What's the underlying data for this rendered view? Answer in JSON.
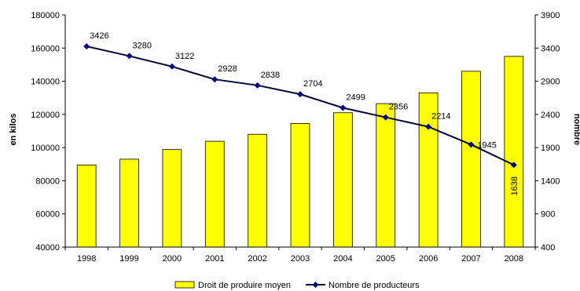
{
  "chart_data": {
    "type": "bar",
    "title": "",
    "categories": [
      "1998",
      "1999",
      "2000",
      "2001",
      "2002",
      "2003",
      "2004",
      "2005",
      "2006",
      "2007",
      "2008"
    ],
    "y_left": {
      "label": "en kilos",
      "range": [
        40000,
        180000
      ],
      "ticks": [
        "40000",
        "60000",
        "80000",
        "100000",
        "120000",
        "140000",
        "160000",
        "180000"
      ]
    },
    "y_right": {
      "label": "nombre",
      "range": [
        400,
        3900
      ],
      "ticks": [
        "400",
        "900",
        "1400",
        "1900",
        "2400",
        "2900",
        "3400",
        "3900"
      ]
    },
    "grid": false,
    "legend_position": "bottom",
    "series": [
      {
        "name": "Droit de produire moyen",
        "type": "bar",
        "axis": "left",
        "color": "#ffff00",
        "values": [
          89500,
          93000,
          98800,
          103800,
          108000,
          114500,
          121000,
          126500,
          133000,
          146000,
          155000
        ]
      },
      {
        "name": "Nombre de producteurs",
        "type": "line",
        "axis": "right",
        "color": "#000033",
        "marker_color": "#000080",
        "values": [
          3426,
          3280,
          3122,
          2928,
          2838,
          2704,
          2499,
          2356,
          2214,
          1945,
          1638
        ],
        "labels": [
          "3426",
          "3280",
          "3122",
          "2928",
          "2838",
          "2704",
          "2499",
          "2356",
          "2214",
          "1945",
          "1638"
        ]
      }
    ]
  }
}
